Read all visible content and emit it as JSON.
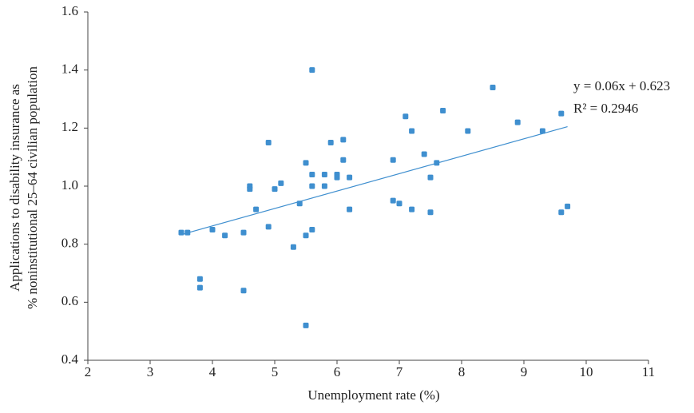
{
  "chart_data": {
    "type": "scatter",
    "x_label": "Unemployment rate (%)",
    "y_label": [
      "Applications to disability insurance as",
      "% noninstitutional 25–64 civilian population"
    ],
    "color": "#3f8fcf",
    "x": [
      3.5,
      3.6,
      3.8,
      3.8,
      4.0,
      4.2,
      4.5,
      4.5,
      4.6,
      4.6,
      4.7,
      4.9,
      4.9,
      5.0,
      5.1,
      5.3,
      5.4,
      5.5,
      5.5,
      5.5,
      5.6,
      5.6,
      5.6,
      5.6,
      5.8,
      5.8,
      5.9,
      6.0,
      6.0,
      6.1,
      6.1,
      6.2,
      6.2,
      6.9,
      6.9,
      7.0,
      7.1,
      7.2,
      7.2,
      7.4,
      7.5,
      7.5,
      7.6,
      7.7,
      8.1,
      8.5,
      8.9,
      9.3,
      9.6,
      9.6,
      9.7
    ],
    "values": [
      0.84,
      0.84,
      0.68,
      0.65,
      0.85,
      0.83,
      0.64,
      0.84,
      1.0,
      0.99,
      0.92,
      1.15,
      0.86,
      0.99,
      1.01,
      0.79,
      0.94,
      1.08,
      0.83,
      0.52,
      1.4,
      1.04,
      1.0,
      0.85,
      1.04,
      1.0,
      1.15,
      1.04,
      1.03,
      1.16,
      1.09,
      1.03,
      0.92,
      1.09,
      0.95,
      0.94,
      1.24,
      1.19,
      0.92,
      1.11,
      1.03,
      0.91,
      1.08,
      1.26,
      1.19,
      1.34,
      1.22,
      1.19,
      1.25,
      0.91,
      0.93
    ],
    "xlim": [
      2,
      11
    ],
    "ylim": [
      0.4,
      1.6
    ],
    "xticks": [
      2,
      3,
      4,
      5,
      6,
      7,
      8,
      9,
      10,
      11
    ],
    "yticks": [
      0.4,
      0.6,
      0.8,
      {
        "value": 1,
        "label": "1.0"
      },
      1.2,
      1.4,
      1.6
    ],
    "trendline": {
      "slope": 0.06,
      "intercept": 0.623,
      "label": "y = 0.06x + 0.623",
      "r2_label": "R² = 0.2946"
    }
  }
}
